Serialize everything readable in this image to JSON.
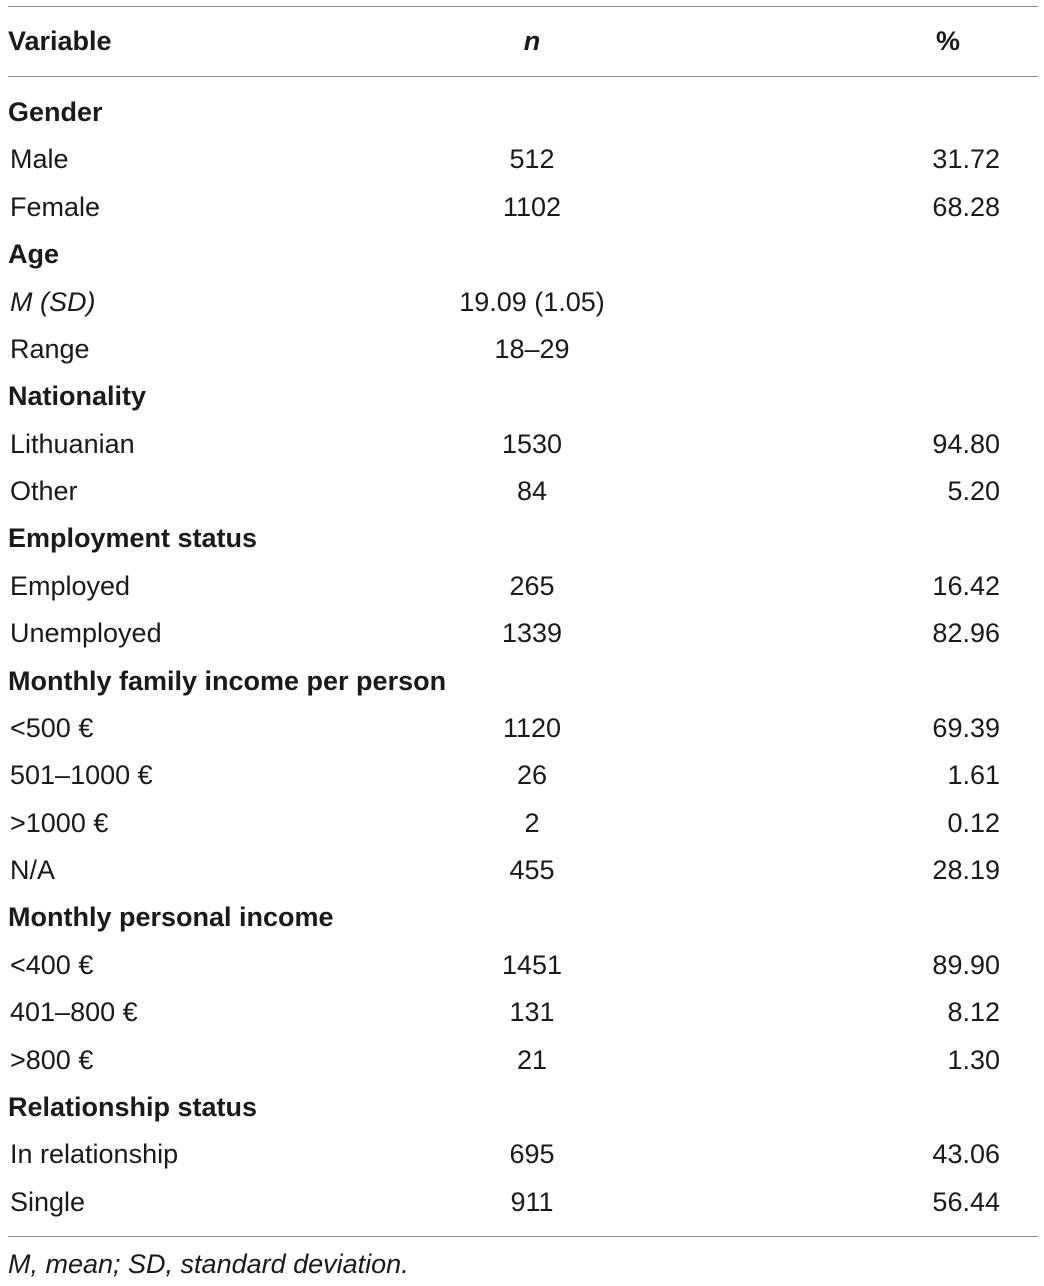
{
  "table": {
    "columns": [
      "Variable",
      "n",
      "%"
    ],
    "rows": [
      {
        "type": "section",
        "label": "Gender"
      },
      {
        "type": "item",
        "label": "Male",
        "n": "512",
        "pct": "31.72"
      },
      {
        "type": "item",
        "label": "Female",
        "n": "1102",
        "pct": "68.28"
      },
      {
        "type": "section",
        "label": "Age"
      },
      {
        "type": "item",
        "label": "M (SD)",
        "n": "19.09 (1.05)",
        "pct": "",
        "italic_label": true
      },
      {
        "type": "item",
        "label": "Range",
        "n": "18–29",
        "pct": ""
      },
      {
        "type": "section",
        "label": "Nationality"
      },
      {
        "type": "item",
        "label": "Lithuanian",
        "n": "1530",
        "pct": "94.80"
      },
      {
        "type": "item",
        "label": "Other",
        "n": "84",
        "pct": "5.20"
      },
      {
        "type": "section",
        "label": "Employment status"
      },
      {
        "type": "item",
        "label": "Employed",
        "n": "265",
        "pct": "16.42"
      },
      {
        "type": "item",
        "label": "Unemployed",
        "n": "1339",
        "pct": "82.96"
      },
      {
        "type": "section",
        "label": "Monthly family income per person"
      },
      {
        "type": "item",
        "label": "<500 €",
        "n": "1120",
        "pct": "69.39"
      },
      {
        "type": "item",
        "label": "501–1000 €",
        "n": "26",
        "pct": "1.61"
      },
      {
        "type": "item",
        "label": ">1000 €",
        "n": "2",
        "pct": "0.12"
      },
      {
        "type": "item",
        "label": "N/A",
        "n": "455",
        "pct": "28.19"
      },
      {
        "type": "section",
        "label": "Monthly personal income"
      },
      {
        "type": "item",
        "label": "<400 €",
        "n": "1451",
        "pct": "89.90"
      },
      {
        "type": "item",
        "label": "401–800 €",
        "n": "131",
        "pct": "8.12"
      },
      {
        "type": "item",
        "label": ">800 €",
        "n": "21",
        "pct": "1.30"
      },
      {
        "type": "section",
        "label": "Relationship status"
      },
      {
        "type": "item",
        "label": "In relationship",
        "n": "695",
        "pct": "43.06"
      },
      {
        "type": "item",
        "label": "Single",
        "n": "911",
        "pct": "56.44"
      }
    ],
    "footnote": "M, mean; SD, standard deviation."
  }
}
